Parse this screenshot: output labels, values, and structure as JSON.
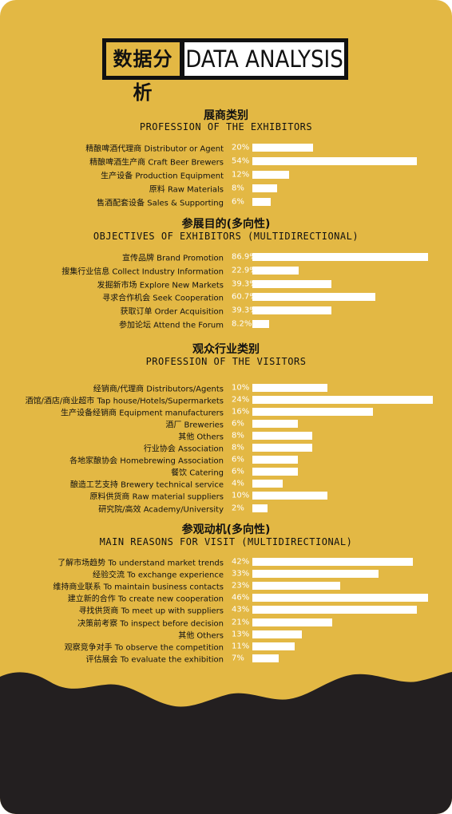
{
  "header": {
    "title_cn": "数据分析",
    "title_en": "DATA ANALYSIS"
  },
  "colors": {
    "background": "#e3b844",
    "bar": "#ffffff",
    "text": "#111111",
    "wave": "#231f20"
  },
  "chart_data": [
    {
      "type": "bar",
      "orientation": "horizontal",
      "title": "展商类别",
      "subtitle": "PROFESSION OF THE EXHIBITORS",
      "categories": [
        "精酿啤酒代理商 Distributor or Agent",
        "精酿啤酒生产商 Craft Beer Brewers",
        "生产设备 Production Equipment",
        "原料 Raw Materials",
        "售酒配套设备 Sales & Supporting"
      ],
      "values": [
        20,
        54,
        12,
        8,
        6
      ],
      "value_labels": [
        "20%",
        "54%",
        "12%",
        "8%",
        "6%"
      ]
    },
    {
      "type": "bar",
      "orientation": "horizontal",
      "title": "参展目的(多向性)",
      "subtitle": "OBJECTIVES OF EXHIBITORS (MULTIDIRECTIONAL)",
      "categories": [
        "宣传品牌 Brand Promotion",
        "搜集行业信息 Collect Industry Information",
        "发掘新市场 Explore New Markets",
        "寻求合作机会 Seek Cooperation",
        "获取订单 Order Acquisition",
        "参加论坛 Attend the Forum"
      ],
      "values": [
        86.9,
        22.9,
        39.3,
        60.7,
        39.3,
        8.2
      ],
      "value_labels": [
        "86.9%",
        "22.9%",
        "39.3%",
        "60.7%",
        "39.3%",
        "8.2%"
      ]
    },
    {
      "type": "bar",
      "orientation": "horizontal",
      "title": "观众行业类别",
      "subtitle": "PROFESSION OF THE VISITORS",
      "categories": [
        "经销商/代理商 Distributors/Agents",
        "酒馆/酒店/商业超市 Tap house/Hotels/Supermarkets",
        "生产设备经销商 Equipment manufacturers",
        "酒厂 Breweries",
        "其他 Others",
        "行业协会 Association",
        "各地家酿协会 Homebrewing Association",
        "餐饮 Catering",
        "酿造工艺支持 Brewery technical service",
        "原料供货商 Raw material suppliers",
        "研究院/高效 Academy/University"
      ],
      "values": [
        10,
        24,
        16,
        6,
        8,
        8,
        6,
        6,
        4,
        10,
        2
      ],
      "value_labels": [
        "10%",
        "24%",
        "16%",
        "6%",
        "8%",
        "8%",
        "6%",
        "6%",
        "4%",
        "10%",
        "2%"
      ]
    },
    {
      "type": "bar",
      "orientation": "horizontal",
      "title": "参观动机(多向性)",
      "subtitle": "MAIN REASONS FOR VISIT (MULTIDIRECTIONAL)",
      "categories": [
        "了解市场趋势 To understand market trends",
        "经验交流 To exchange experience",
        "维持商业联系 To maintain business contacts",
        "建立新的合作 To create new cooperation",
        "寻找供货商 To meet up with suppliers",
        "决策前考察 To inspect before decision",
        "其他 Others",
        "观察竞争对手 To observe the competition",
        "评估展会 To evaluate the exhibition"
      ],
      "values": [
        42,
        33,
        23,
        46,
        43,
        21,
        13,
        11,
        7
      ],
      "value_labels": [
        "42%",
        "33%",
        "23%",
        "46%",
        "43%",
        "21%",
        "13%",
        "11%",
        "7%"
      ]
    }
  ]
}
